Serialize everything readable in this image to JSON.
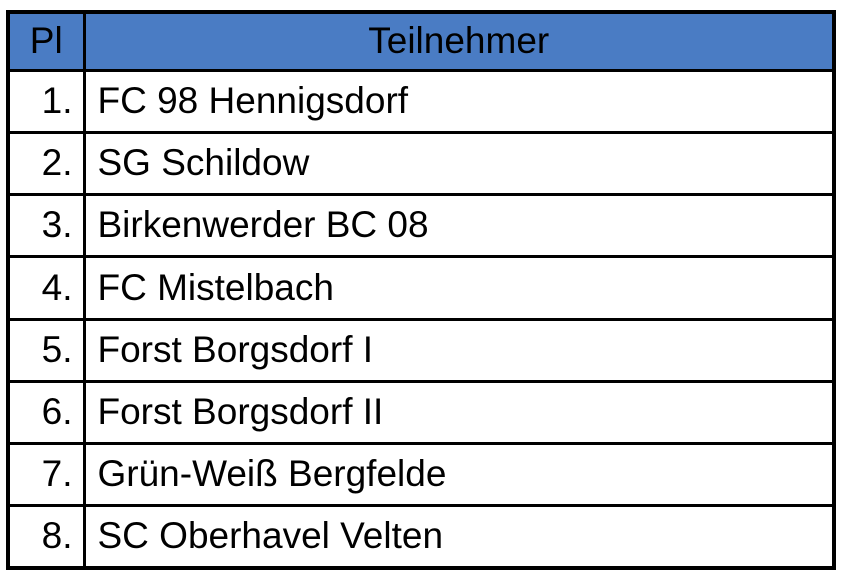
{
  "table": {
    "columns": {
      "pl_label": "Pl",
      "teilnehmer_label": "Teilnehmer"
    },
    "rows": [
      {
        "pl": "1.",
        "teilnehmer": "FC 98 Hennigsdorf"
      },
      {
        "pl": "2.",
        "teilnehmer": "SG Schildow"
      },
      {
        "pl": "3.",
        "teilnehmer": "Birkenwerder BC 08"
      },
      {
        "pl": "4.",
        "teilnehmer": "FC Mistelbach"
      },
      {
        "pl": "5.",
        "teilnehmer": "Forst Borgsdorf I"
      },
      {
        "pl": "6.",
        "teilnehmer": "Forst Borgsdorf II"
      },
      {
        "pl": "7.",
        "teilnehmer": "Grün-Weiß Bergfelde"
      },
      {
        "pl": "8.",
        "teilnehmer": "SC Oberhavel Velten"
      }
    ],
    "colors": {
      "header_bg": "#4a7cc4",
      "header_text": "#000000",
      "border": "#000000",
      "row_bg": "#ffffff"
    }
  }
}
